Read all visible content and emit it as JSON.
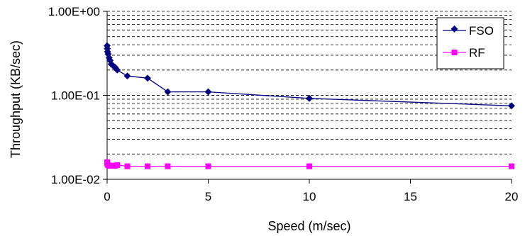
{
  "chart_data": {
    "type": "line",
    "title": "",
    "xlabel": "Speed (m/sec)",
    "ylabel": "Throughput (KB/sec)",
    "xlim": [
      0,
      20
    ],
    "ylim": [
      0.01,
      1
    ],
    "y_scale": "log",
    "x_ticks": [
      "0",
      "5",
      "10",
      "15",
      "20"
    ],
    "y_ticks": [
      "1.00E-02",
      "1.00E-01",
      "1.00E+00"
    ],
    "grid": "dashed horizontal (major and minor)",
    "legend_position": "top-right",
    "series": [
      {
        "name": "FSO",
        "color": "#000080",
        "marker": "diamond",
        "x": [
          0,
          0.01,
          0.02,
          0.05,
          0.1,
          0.15,
          0.2,
          0.3,
          0.4,
          0.5,
          1,
          2,
          3,
          5,
          10,
          20
        ],
        "y": [
          0.39,
          0.36,
          0.33,
          0.31,
          0.28,
          0.26,
          0.235,
          0.225,
          0.215,
          0.2,
          0.17,
          0.16,
          0.11,
          0.11,
          0.092,
          0.075
        ]
      },
      {
        "name": "RF",
        "color": "#ff00ff",
        "marker": "square",
        "x": [
          0,
          0.01,
          0.02,
          0.05,
          0.1,
          0.15,
          0.2,
          0.3,
          0.4,
          0.5,
          1,
          2,
          3,
          5,
          10,
          20
        ],
        "y": [
          0.016,
          0.0155,
          0.015,
          0.0148,
          0.0145,
          0.0145,
          0.0145,
          0.0145,
          0.0145,
          0.0148,
          0.0143,
          0.0143,
          0.0143,
          0.0143,
          0.0143,
          0.0143
        ]
      }
    ]
  }
}
